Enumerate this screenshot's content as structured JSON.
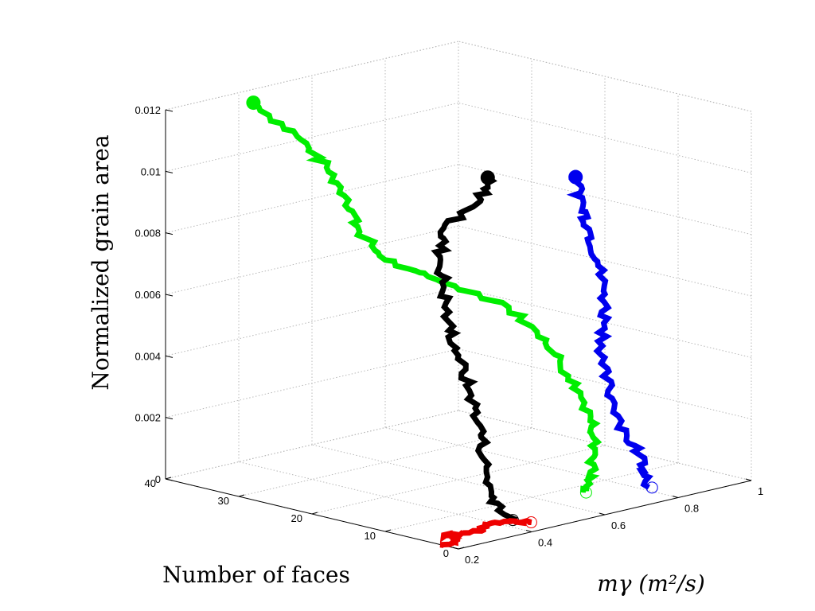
{
  "chart_data": {
    "type": "line3d",
    "view": "3-D trajectory plot with dotted grid on back walls",
    "title": "",
    "xlabel": "Number of faces",
    "ylabel": "mγ (m²/s)",
    "zlabel": "Normalized grain area",
    "xlim": [
      0,
      40
    ],
    "ylim": [
      0.2,
      1
    ],
    "zlim": [
      0,
      0.012
    ],
    "x_ticks": [
      "0",
      "10",
      "20",
      "30",
      "40"
    ],
    "y_ticks": [
      "0.2",
      "0.4",
      "0.6",
      "0.8",
      "1"
    ],
    "z_ticks": [
      "0",
      "0.002",
      "0.004",
      "0.006",
      "0.008",
      "0.01",
      "0.012"
    ],
    "grid": true,
    "series": [
      {
        "color": "#00ee00",
        "start_marker": "filled-circle",
        "end_marker": "open-circle",
        "points": [
          {
            "faces": 37,
            "mg": 0.38,
            "area": 0.0119
          },
          {
            "faces": 34,
            "mg": 0.44,
            "area": 0.0108
          },
          {
            "faces": 32,
            "mg": 0.48,
            "area": 0.0098
          },
          {
            "faces": 30,
            "mg": 0.5,
            "area": 0.0088
          },
          {
            "faces": 29,
            "mg": 0.51,
            "area": 0.0078
          },
          {
            "faces": 28,
            "mg": 0.56,
            "area": 0.0068
          },
          {
            "faces": 26,
            "mg": 0.66,
            "area": 0.006
          },
          {
            "faces": 22,
            "mg": 0.76,
            "area": 0.0052
          },
          {
            "faces": 18,
            "mg": 0.8,
            "area": 0.0041
          },
          {
            "faces": 15,
            "mg": 0.8,
            "area": 0.0031
          },
          {
            "faces": 12,
            "mg": 0.8,
            "area": 0.0021
          },
          {
            "faces": 10,
            "mg": 0.78,
            "area": 0.0013
          },
          {
            "faces": 8,
            "mg": 0.72,
            "area": 0.0006
          },
          {
            "faces": 7,
            "mg": 0.68,
            "area": 0.0001
          }
        ]
      },
      {
        "color": "#000000",
        "start_marker": "filled-circle",
        "end_marker": "open-circle",
        "points": [
          {
            "faces": 20,
            "mg": 0.68,
            "area": 0.0096
          },
          {
            "faces": 19,
            "mg": 0.64,
            "area": 0.009
          },
          {
            "faces": 20,
            "mg": 0.56,
            "area": 0.0083
          },
          {
            "faces": 19,
            "mg": 0.53,
            "area": 0.0075
          },
          {
            "faces": 18,
            "mg": 0.52,
            "area": 0.0066
          },
          {
            "faces": 17,
            "mg": 0.51,
            "area": 0.0056
          },
          {
            "faces": 15,
            "mg": 0.5,
            "area": 0.0046
          },
          {
            "faces": 13,
            "mg": 0.49,
            "area": 0.0036
          },
          {
            "faces": 11,
            "mg": 0.48,
            "area": 0.0026
          },
          {
            "faces": 9,
            "mg": 0.45,
            "area": 0.0017
          },
          {
            "faces": 6,
            "mg": 0.41,
            "area": 0.0008
          },
          {
            "faces": 4,
            "mg": 0.42,
            "area": 0.0001
          }
        ]
      },
      {
        "color": "#0000ee",
        "start_marker": "filled-circle",
        "end_marker": "open-circle",
        "points": [
          {
            "faces": 16,
            "mg": 0.84,
            "area": 0.0094
          },
          {
            "faces": 15,
            "mg": 0.84,
            "area": 0.0085
          },
          {
            "faces": 15,
            "mg": 0.86,
            "area": 0.0076
          },
          {
            "faces": 15,
            "mg": 0.88,
            "area": 0.0066
          },
          {
            "faces": 14,
            "mg": 0.88,
            "area": 0.0056
          },
          {
            "faces": 13,
            "mg": 0.86,
            "area": 0.0046
          },
          {
            "faces": 12,
            "mg": 0.83,
            "area": 0.0036
          },
          {
            "faces": 10,
            "mg": 0.82,
            "area": 0.0026
          },
          {
            "faces": 8,
            "mg": 0.82,
            "area": 0.0015
          },
          {
            "faces": 6,
            "mg": 0.83,
            "area": 0.0007
          },
          {
            "faces": 4,
            "mg": 0.8,
            "area": 0.0001
          }
        ]
      },
      {
        "color": "#ee0000",
        "start_marker": "none",
        "end_marker": "open-circle",
        "points": [
          {
            "faces": 2,
            "mg": 0.2,
            "area": 0.0
          },
          {
            "faces": 3,
            "mg": 0.26,
            "area": 0.0
          },
          {
            "faces": 5,
            "mg": 0.26,
            "area": 0.0
          },
          {
            "faces": 4,
            "mg": 0.33,
            "area": 0.0
          },
          {
            "faces": 5,
            "mg": 0.38,
            "area": 0.0
          },
          {
            "faces": 4,
            "mg": 0.44,
            "area": 0.0
          },
          {
            "faces": 3,
            "mg": 0.45,
            "area": 0.0
          }
        ]
      }
    ]
  }
}
